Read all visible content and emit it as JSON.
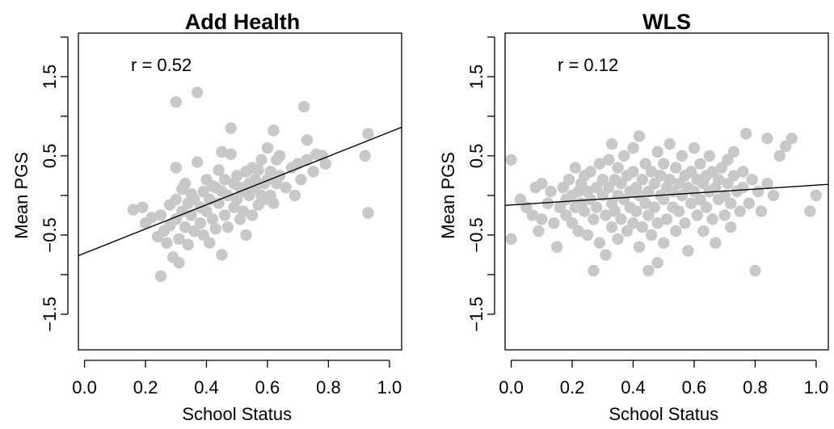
{
  "chart_data": [
    {
      "type": "scatter",
      "title": "Add Health",
      "xlabel": "School Status",
      "ylabel": "Mean PGS",
      "xlim": [
        -0.02,
        1.04
      ],
      "ylim": [
        -1.95,
        2.05
      ],
      "xticks": [
        "0.0",
        "0.2",
        "0.4",
        "0.6",
        "0.8",
        "1.0"
      ],
      "xtick_values": [
        0.0,
        0.2,
        0.4,
        0.6,
        0.8,
        1.0
      ],
      "yticks": [
        "−1.5",
        "−0.5",
        "0.5",
        "1.5"
      ],
      "ytick_values": [
        -1.5,
        -0.5,
        0.5,
        1.5
      ],
      "annotation": "r = 0.52",
      "point_color": "#c8c8c8",
      "fit_line": {
        "intercept": -0.73,
        "slope": 1.53
      },
      "points": [
        [
          0.16,
          -0.18
        ],
        [
          0.19,
          -0.15
        ],
        [
          0.2,
          -0.35
        ],
        [
          0.22,
          -0.28
        ],
        [
          0.24,
          -0.52
        ],
        [
          0.25,
          -0.25
        ],
        [
          0.25,
          -1.02
        ],
        [
          0.26,
          -0.45
        ],
        [
          0.27,
          -0.6
        ],
        [
          0.28,
          -0.38
        ],
        [
          0.28,
          -0.12
        ],
        [
          0.29,
          -0.78
        ],
        [
          0.3,
          -0.05
        ],
        [
          0.3,
          -0.3
        ],
        [
          0.3,
          0.35
        ],
        [
          0.3,
          1.18
        ],
        [
          0.31,
          -0.85
        ],
        [
          0.31,
          -0.55
        ],
        [
          0.32,
          -0.2
        ],
        [
          0.32,
          0.08
        ],
        [
          0.33,
          -0.4
        ],
        [
          0.33,
          0.15
        ],
        [
          0.34,
          -0.1
        ],
        [
          0.34,
          -0.62
        ],
        [
          0.35,
          -0.25
        ],
        [
          0.35,
          0.02
        ],
        [
          0.36,
          -0.45
        ],
        [
          0.36,
          -0.05
        ],
        [
          0.37,
          0.42
        ],
        [
          0.37,
          1.3
        ],
        [
          0.38,
          -0.15
        ],
        [
          0.38,
          -0.35
        ],
        [
          0.39,
          0.05
        ],
        [
          0.39,
          -0.5
        ],
        [
          0.4,
          0.2
        ],
        [
          0.4,
          -0.2
        ],
        [
          0.41,
          -0.05
        ],
        [
          0.41,
          -0.6
        ],
        [
          0.42,
          0.12
        ],
        [
          0.42,
          -0.3
        ],
        [
          0.43,
          0.1
        ],
        [
          0.43,
          -0.42
        ],
        [
          0.44,
          0.32
        ],
        [
          0.44,
          -0.1
        ],
        [
          0.45,
          0.05
        ],
        [
          0.45,
          0.55
        ],
        [
          0.45,
          -0.75
        ],
        [
          0.46,
          -0.25
        ],
        [
          0.46,
          0.2
        ],
        [
          0.47,
          0.0
        ],
        [
          0.47,
          -0.4
        ],
        [
          0.48,
          0.52
        ],
        [
          0.48,
          0.85
        ],
        [
          0.49,
          -0.15
        ],
        [
          0.49,
          0.15
        ],
        [
          0.5,
          -0.05
        ],
        [
          0.5,
          0.25
        ],
        [
          0.51,
          -0.3
        ],
        [
          0.51,
          0.1
        ],
        [
          0.52,
          0.05
        ],
        [
          0.52,
          -0.2
        ],
        [
          0.53,
          0.3
        ],
        [
          0.53,
          -0.5
        ],
        [
          0.54,
          0.15
        ],
        [
          0.54,
          0.0
        ],
        [
          0.55,
          0.35
        ],
        [
          0.55,
          -0.25
        ],
        [
          0.56,
          0.1
        ],
        [
          0.56,
          0.2
        ],
        [
          0.57,
          -0.12
        ],
        [
          0.57,
          0.32
        ],
        [
          0.58,
          0.0
        ],
        [
          0.58,
          0.45
        ],
        [
          0.59,
          0.15
        ],
        [
          0.59,
          -0.05
        ],
        [
          0.6,
          0.6
        ],
        [
          0.6,
          0.2
        ],
        [
          0.61,
          0.0
        ],
        [
          0.61,
          0.3
        ],
        [
          0.62,
          0.82
        ],
        [
          0.62,
          -0.1
        ],
        [
          0.63,
          0.45
        ],
        [
          0.63,
          0.15
        ],
        [
          0.64,
          0.25
        ],
        [
          0.64,
          0.5
        ],
        [
          0.66,
          0.1
        ],
        [
          0.68,
          0.35
        ],
        [
          0.69,
          0.0
        ],
        [
          0.7,
          0.4
        ],
        [
          0.71,
          0.2
        ],
        [
          0.72,
          1.12
        ],
        [
          0.73,
          0.45
        ],
        [
          0.73,
          0.7
        ],
        [
          0.75,
          0.3
        ],
        [
          0.76,
          0.52
        ],
        [
          0.78,
          0.5
        ],
        [
          0.79,
          0.4
        ],
        [
          0.92,
          0.5
        ],
        [
          0.93,
          0.78
        ],
        [
          0.93,
          -0.22
        ]
      ]
    },
    {
      "type": "scatter",
      "title": "WLS",
      "xlabel": "School Status",
      "ylabel": "Mean PGS",
      "xlim": [
        -0.02,
        1.04
      ],
      "ylim": [
        -1.95,
        2.05
      ],
      "xticks": [
        "0.0",
        "0.2",
        "0.4",
        "0.6",
        "0.8",
        "1.0"
      ],
      "xtick_values": [
        0.0,
        0.2,
        0.4,
        0.6,
        0.8,
        1.0
      ],
      "yticks": [
        "−1.5",
        "−0.5",
        "0.5",
        "1.5"
      ],
      "ytick_values": [
        -1.5,
        -0.5,
        0.5,
        1.5
      ],
      "annotation": "r = 0.12",
      "point_color": "#c8c8c8",
      "fit_line": {
        "intercept": -0.12,
        "slope": 0.25
      },
      "points": [
        [
          0.0,
          0.45
        ],
        [
          0.0,
          -0.55
        ],
        [
          0.03,
          -0.05
        ],
        [
          0.05,
          -0.15
        ],
        [
          0.07,
          -0.25
        ],
        [
          0.08,
          0.1
        ],
        [
          0.09,
          -0.45
        ],
        [
          0.1,
          0.15
        ],
        [
          0.1,
          -0.3
        ],
        [
          0.12,
          -0.1
        ],
        [
          0.13,
          0.05
        ],
        [
          0.14,
          -0.35
        ],
        [
          0.15,
          -0.65
        ],
        [
          0.16,
          -0.15
        ],
        [
          0.17,
          0.1
        ],
        [
          0.18,
          -0.05
        ],
        [
          0.18,
          -0.25
        ],
        [
          0.19,
          0.2
        ],
        [
          0.2,
          0.0
        ],
        [
          0.2,
          -0.35
        ],
        [
          0.21,
          0.35
        ],
        [
          0.21,
          -0.15
        ],
        [
          0.22,
          0.05
        ],
        [
          0.22,
          -0.45
        ],
        [
          0.23,
          -0.1
        ],
        [
          0.23,
          0.15
        ],
        [
          0.24,
          0.25
        ],
        [
          0.24,
          -0.2
        ],
        [
          0.25,
          -0.5
        ],
        [
          0.25,
          0.05
        ],
        [
          0.26,
          0.3
        ],
        [
          0.26,
          -0.05
        ],
        [
          0.27,
          -0.3
        ],
        [
          0.27,
          -0.95
        ],
        [
          0.28,
          0.1
        ],
        [
          0.28,
          -0.15
        ],
        [
          0.29,
          0.4
        ],
        [
          0.29,
          -0.6
        ],
        [
          0.3,
          0.0
        ],
        [
          0.3,
          0.2
        ],
        [
          0.31,
          -0.25
        ],
        [
          0.31,
          -0.75
        ],
        [
          0.32,
          0.45
        ],
        [
          0.32,
          0.1
        ],
        [
          0.33,
          -0.1
        ],
        [
          0.33,
          0.65
        ],
        [
          0.33,
          -0.4
        ],
        [
          0.34,
          0.2
        ],
        [
          0.34,
          -0.2
        ],
        [
          0.35,
          0.0
        ],
        [
          0.35,
          0.35
        ],
        [
          0.35,
          -0.55
        ],
        [
          0.36,
          0.15
        ],
        [
          0.36,
          -0.3
        ],
        [
          0.37,
          0.5
        ],
        [
          0.37,
          -0.05
        ],
        [
          0.38,
          0.25
        ],
        [
          0.38,
          -0.45
        ],
        [
          0.39,
          0.05
        ],
        [
          0.39,
          -0.15
        ],
        [
          0.4,
          0.6
        ],
        [
          0.4,
          0.3
        ],
        [
          0.4,
          -0.35
        ],
        [
          0.41,
          0.1
        ],
        [
          0.41,
          -0.2
        ],
        [
          0.42,
          0.75
        ],
        [
          0.42,
          -0.65
        ],
        [
          0.42,
          0.0
        ],
        [
          0.43,
          0.2
        ],
        [
          0.43,
          -0.4
        ],
        [
          0.44,
          0.4
        ],
        [
          0.44,
          -0.1
        ],
        [
          0.45,
          0.05
        ],
        [
          0.45,
          -0.25
        ],
        [
          0.45,
          -0.95
        ],
        [
          0.46,
          0.3
        ],
        [
          0.46,
          -0.5
        ],
        [
          0.47,
          0.15
        ],
        [
          0.47,
          -0.15
        ],
        [
          0.48,
          0.55
        ],
        [
          0.48,
          -0.35
        ],
        [
          0.48,
          -0.85
        ],
        [
          0.49,
          0.0
        ],
        [
          0.49,
          0.25
        ],
        [
          0.5,
          -0.05
        ],
        [
          0.5,
          0.4
        ],
        [
          0.5,
          -0.6
        ],
        [
          0.51,
          0.1
        ],
        [
          0.51,
          -0.3
        ],
        [
          0.52,
          0.2
        ],
        [
          0.52,
          0.65
        ],
        [
          0.53,
          -0.15
        ],
        [
          0.53,
          0.05
        ],
        [
          0.54,
          0.35
        ],
        [
          0.54,
          -0.45
        ],
        [
          0.55,
          0.15
        ],
        [
          0.55,
          -0.2
        ],
        [
          0.56,
          0.0
        ],
        [
          0.56,
          0.5
        ],
        [
          0.57,
          0.25
        ],
        [
          0.57,
          -0.35
        ],
        [
          0.58,
          0.1
        ],
        [
          0.58,
          -0.7
        ],
        [
          0.59,
          -0.1
        ],
        [
          0.59,
          0.3
        ],
        [
          0.6,
          0.05
        ],
        [
          0.6,
          0.6
        ],
        [
          0.61,
          -0.25
        ],
        [
          0.61,
          0.2
        ],
        [
          0.62,
          0.4
        ],
        [
          0.62,
          -0.05
        ],
        [
          0.63,
          0.15
        ],
        [
          0.63,
          -0.45
        ],
        [
          0.64,
          0.25
        ],
        [
          0.64,
          -0.15
        ],
        [
          0.65,
          0.05
        ],
        [
          0.65,
          0.5
        ],
        [
          0.66,
          -0.3
        ],
        [
          0.66,
          0.3
        ],
        [
          0.67,
          0.1
        ],
        [
          0.67,
          -0.6
        ],
        [
          0.68,
          0.2
        ],
        [
          0.68,
          -0.05
        ],
        [
          0.69,
          0.35
        ],
        [
          0.7,
          0.0
        ],
        [
          0.7,
          -0.25
        ],
        [
          0.71,
          0.45
        ],
        [
          0.71,
          0.15
        ],
        [
          0.72,
          -0.1
        ],
        [
          0.72,
          -0.4
        ],
        [
          0.73,
          0.55
        ],
        [
          0.73,
          0.25
        ],
        [
          0.74,
          0.05
        ],
        [
          0.75,
          -0.2
        ],
        [
          0.76,
          0.3
        ],
        [
          0.76,
          0.1
        ],
        [
          0.77,
          0.78
        ],
        [
          0.78,
          -0.1
        ],
        [
          0.79,
          0.2
        ],
        [
          0.8,
          -0.95
        ],
        [
          0.81,
          0.05
        ],
        [
          0.82,
          -0.2
        ],
        [
          0.84,
          0.15
        ],
        [
          0.84,
          0.72
        ],
        [
          0.86,
          0.0
        ],
        [
          0.88,
          0.5
        ],
        [
          0.9,
          0.62
        ],
        [
          0.92,
          0.72
        ],
        [
          0.98,
          -0.2
        ],
        [
          1.0,
          0.0
        ]
      ]
    }
  ]
}
